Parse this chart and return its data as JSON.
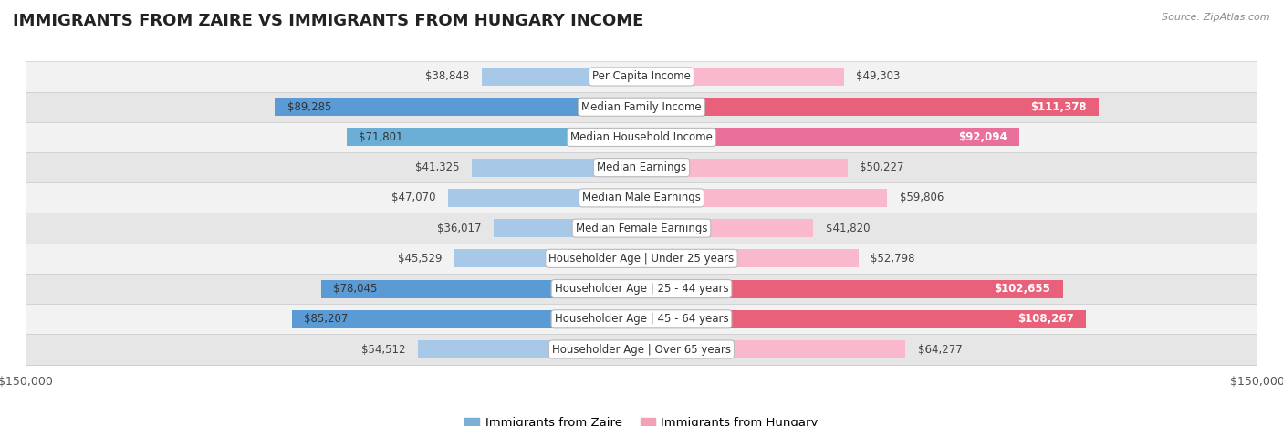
{
  "title": "IMMIGRANTS FROM ZAIRE VS IMMIGRANTS FROM HUNGARY INCOME",
  "source": "Source: ZipAtlas.com",
  "categories": [
    "Per Capita Income",
    "Median Family Income",
    "Median Household Income",
    "Median Earnings",
    "Median Male Earnings",
    "Median Female Earnings",
    "Householder Age | Under 25 years",
    "Householder Age | 25 - 44 years",
    "Householder Age | 45 - 64 years",
    "Householder Age | Over 65 years"
  ],
  "zaire_values": [
    38848,
    89285,
    71801,
    41325,
    47070,
    36017,
    45529,
    78045,
    85207,
    54512
  ],
  "hungary_values": [
    49303,
    111378,
    92094,
    50227,
    59806,
    41820,
    52798,
    102655,
    108267,
    64277
  ],
  "zaire_labels": [
    "$38,848",
    "$89,285",
    "$71,801",
    "$41,325",
    "$47,070",
    "$36,017",
    "$45,529",
    "$78,045",
    "$85,207",
    "$54,512"
  ],
  "hungary_labels": [
    "$49,303",
    "$111,378",
    "$92,094",
    "$50,227",
    "$59,806",
    "$41,820",
    "$52,798",
    "$102,655",
    "$108,267",
    "$64,277"
  ],
  "zaire_colors": [
    "#a8c8e8",
    "#5b9bd5",
    "#6baed6",
    "#a8c8e8",
    "#a8c8e8",
    "#a8c8e8",
    "#a8c8e8",
    "#5b9bd5",
    "#5b9bd5",
    "#a8c8e8"
  ],
  "hungary_colors": [
    "#f9b8cc",
    "#e8607a",
    "#e8709a",
    "#f9b8cc",
    "#f9b8cc",
    "#f9b8cc",
    "#f9b8cc",
    "#e8607a",
    "#e8607a",
    "#f9b8cc"
  ],
  "zaire_label_inside": [
    false,
    true,
    true,
    false,
    false,
    false,
    false,
    true,
    true,
    false
  ],
  "hungary_label_inside": [
    false,
    true,
    true,
    false,
    false,
    false,
    false,
    true,
    true,
    false
  ],
  "axis_limit": 150000,
  "bar_height": 0.6,
  "row_colors": [
    "#f0f0f0",
    "#e8e8e8",
    "#f0f0f0",
    "#e8e8e8",
    "#f0f0f0",
    "#e8e8e8",
    "#f0f0f0",
    "#e8e8e8",
    "#f0f0f0",
    "#e8e8e8"
  ],
  "legend_zaire": "Immigrants from Zaire",
  "legend_hungary": "Immigrants from Hungary",
  "zaire_legend_color": "#7bafd4",
  "hungary_legend_color": "#f4a0b5",
  "title_fontsize": 13,
  "value_fontsize": 8.5,
  "cat_fontsize": 8.5
}
